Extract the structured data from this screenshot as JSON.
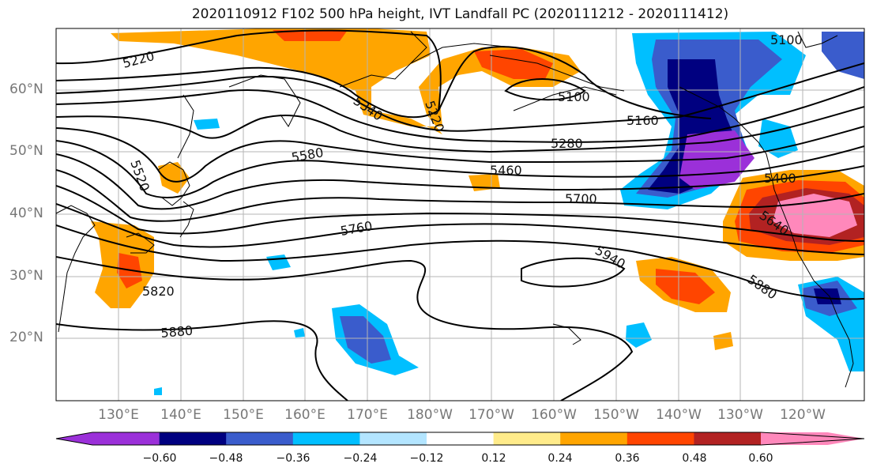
{
  "title": "2020110912 F102 500 hPa height, IVT Landfall PC (2020111212 - 2020111412)",
  "lat_labels": [
    "60°N",
    "50°N",
    "40°N",
    "30°N",
    "20°N"
  ],
  "lon_labels": [
    "130°E",
    "140°E",
    "150°E",
    "160°E",
    "170°E",
    "180°W",
    "170°W",
    "160°W",
    "150°W",
    "140°W",
    "130°W",
    "120°W"
  ],
  "contour_labels": [
    "5220",
    "5340",
    "5220",
    "5100",
    "5100",
    "5160",
    "5280",
    "5580",
    "5460",
    "5520",
    "5400",
    "5700",
    "5760",
    "5640",
    "5940",
    "5880",
    "5820",
    "5880"
  ],
  "colorbar": {
    "colors": [
      "#9b30d9",
      "#000080",
      "#3a5ccc",
      "#00bfff",
      "#b3e5ff",
      "#ffffff",
      "#ffeb8a",
      "#ffa500",
      "#ff4500",
      "#b22222",
      "#ff88bb"
    ],
    "ticks": [
      "−0.60",
      "−0.48",
      "−0.36",
      "−0.24",
      "−0.12",
      "0.12",
      "0.24",
      "0.36",
      "0.48",
      "0.60"
    ]
  }
}
